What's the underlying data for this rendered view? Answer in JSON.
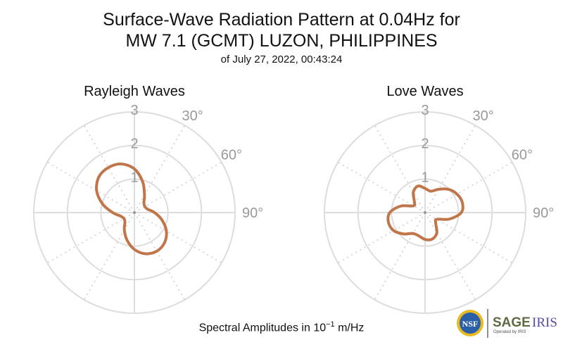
{
  "title_line1": "Surface-Wave Radiation Pattern at 0.04Hz for",
  "title_line2": "MW 7.1 (GCMT) LUZON, PHILIPPINES",
  "subtitle": "of July 27, 2022, 00:43:24",
  "footer": {
    "prefix": "Spectral Amplitudes in ",
    "base": "10",
    "exp": "−1",
    "unit": " m/Hz"
  },
  "logos": {
    "nsf": "NSF",
    "sage": "SAGE",
    "iris": "IRIS",
    "operated": "Operated by IRIS"
  },
  "chart_data": [
    {
      "type": "polar-line",
      "title": "Rayleigh Waves",
      "r_ticks": [
        "1",
        "2",
        "3"
      ],
      "r_max": 3,
      "angle_labels": [
        "30°",
        "60°",
        "90°"
      ],
      "color": "#c0764a",
      "theta_deg": [
        0,
        15,
        30,
        45,
        60,
        75,
        90,
        105,
        120,
        135,
        150,
        165,
        180,
        195,
        210,
        225,
        240,
        255,
        270,
        285,
        300,
        315,
        330,
        345
      ],
      "r": [
        1.3,
        0.95,
        0.6,
        0.4,
        0.36,
        0.4,
        0.6,
        0.85,
        1.1,
        1.27,
        1.33,
        1.27,
        1.1,
        0.85,
        0.6,
        0.4,
        0.36,
        0.42,
        0.65,
        0.98,
        1.3,
        1.5,
        1.55,
        1.5
      ]
    },
    {
      "type": "polar-line",
      "title": "Love Waves",
      "r_ticks": [
        "1",
        "2",
        "3"
      ],
      "r_max": 3,
      "angle_labels": [
        "30°",
        "60°",
        "90°"
      ],
      "color": "#c0764a",
      "theta_deg": [
        0,
        15,
        30,
        45,
        60,
        75,
        90,
        105,
        120,
        135,
        150,
        165,
        180,
        195,
        210,
        225,
        240,
        255,
        270,
        285,
        300,
        315,
        330,
        345
      ],
      "r": [
        0.72,
        0.66,
        0.8,
        0.98,
        1.1,
        1.15,
        1.08,
        0.75,
        0.4,
        0.45,
        0.7,
        0.82,
        0.8,
        0.72,
        0.72,
        0.9,
        1.08,
        1.13,
        1.05,
        0.75,
        0.4,
        0.45,
        0.7,
        0.82
      ]
    }
  ]
}
